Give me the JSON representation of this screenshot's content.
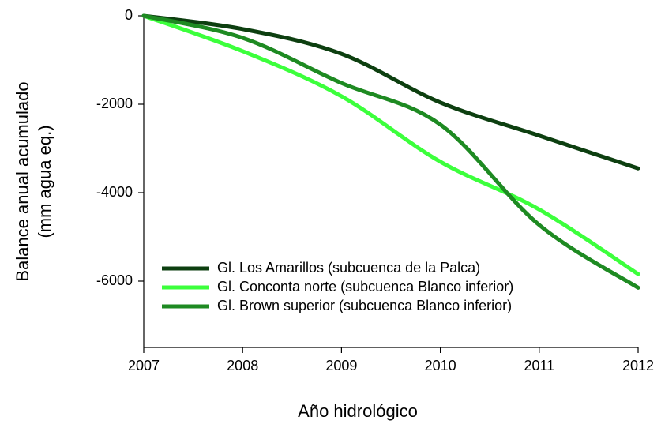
{
  "chart_data": {
    "type": "line",
    "xlabel": "Año hidrológico",
    "ylabel": [
      "Balance anual acumulado",
      "(mm agua eq.)"
    ],
    "x": [
      2007,
      2008,
      2009,
      2010,
      2011,
      2012
    ],
    "xlim": [
      2007,
      2012
    ],
    "xticks": [
      2007,
      2008,
      2009,
      2010,
      2011,
      2012
    ],
    "ylim": [
      -7500,
      0
    ],
    "yticks": [
      0,
      -2000,
      -4000,
      -6000
    ],
    "grid": false,
    "legend": "lower left",
    "series": [
      {
        "name": "Gl. Los Amarillos (subcuenca de la Palca)",
        "color": "#0d3f10",
        "values": [
          0,
          -300,
          -860,
          -1960,
          -2710,
          -3450
        ]
      },
      {
        "name": "Gl. Conconta norte (subcuenca Blanco inferior)",
        "color": "#3cff3c",
        "values": [
          0,
          -800,
          -1820,
          -3300,
          -4380,
          -5840
        ]
      },
      {
        "name": "Gl. Brown superior (subcuenca Blanco inferior)",
        "color": "#1e8a22",
        "values": [
          0,
          -500,
          -1520,
          -2460,
          -4730,
          -6150
        ]
      }
    ]
  }
}
